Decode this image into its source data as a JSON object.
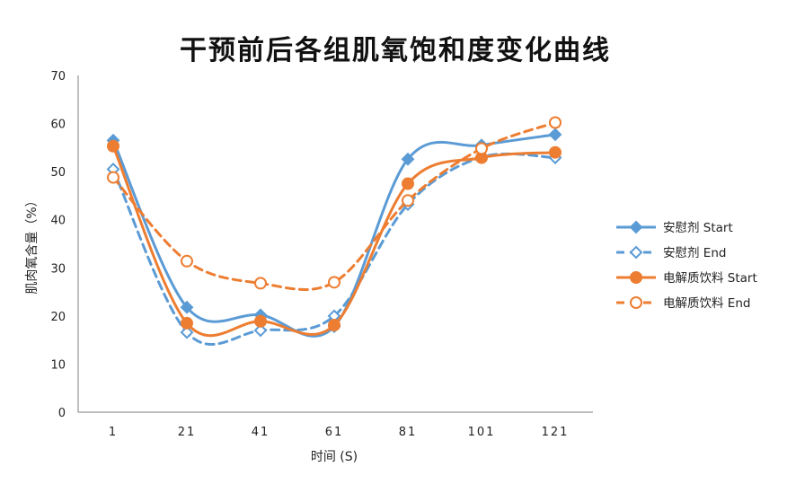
{
  "chart_data": {
    "type": "line",
    "title": "干预前后各组肌氧饱和度变化曲线",
    "xlabel": "时间 (S)",
    "ylabel": "肌肉氧含量（%）",
    "categories": [
      "1",
      "21",
      "41",
      "61",
      "81",
      "101",
      "121"
    ],
    "ylim": [
      0,
      70
    ],
    "yticks": [
      0,
      10,
      20,
      30,
      40,
      50,
      60,
      70
    ],
    "grid": false,
    "legend_position": "right",
    "series": [
      {
        "name": "安慰剂 Start",
        "values": [
          56.5,
          21.8,
          20.2,
          17.8,
          52.6,
          55.5,
          57.7
        ],
        "color": "#5B9BD5",
        "line": "solid",
        "marker": "diamond-filled"
      },
      {
        "name": "安慰剂 End",
        "values": [
          50.5,
          16.6,
          17.0,
          20.0,
          43.2,
          53.0,
          52.9
        ],
        "color": "#5B9BD5",
        "line": "dashed",
        "marker": "diamond-open"
      },
      {
        "name": "电解质饮料 Start",
        "values": [
          55.3,
          18.5,
          18.9,
          18.1,
          47.5,
          52.9,
          54.0
        ],
        "color": "#ED7D31",
        "line": "solid",
        "marker": "circle-filled"
      },
      {
        "name": "电解质饮料 End",
        "values": [
          48.8,
          31.4,
          26.8,
          27.0,
          44.0,
          54.8,
          60.2
        ],
        "color": "#ED7D31",
        "line": "dashed",
        "marker": "circle-open"
      }
    ]
  }
}
